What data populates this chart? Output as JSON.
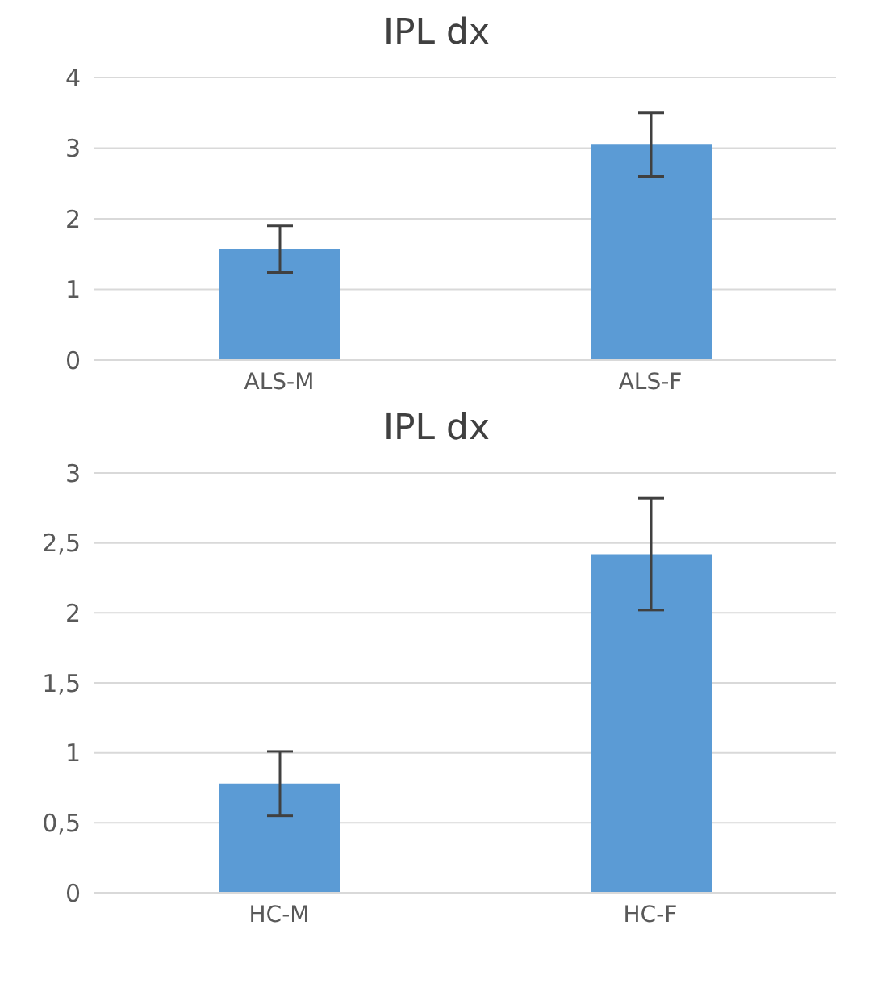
{
  "chart_data": [
    {
      "type": "bar",
      "title": "IPL dx",
      "categories": [
        "ALS-M",
        "ALS-F"
      ],
      "values": [
        1.57,
        3.05
      ],
      "errors": [
        0.33,
        0.45
      ],
      "color": "#5b9bd5",
      "ylim": [
        0,
        4
      ],
      "yticks": [
        0,
        1,
        2,
        3,
        4
      ],
      "grid": "y"
    },
    {
      "type": "bar",
      "title": "IPL dx",
      "categories": [
        "HC-M",
        "HC-F"
      ],
      "values": [
        0.78,
        2.42
      ],
      "errors": [
        0.23,
        0.4
      ],
      "color": "#5b9bd5",
      "ylim": [
        0,
        3
      ],
      "yticks": [
        0,
        {
          "value": 0.5,
          "label": "0,5"
        },
        1,
        {
          "value": 1.5,
          "label": "1,5"
        },
        2,
        {
          "value": 2.5,
          "label": "2,5"
        },
        3
      ],
      "grid": "y"
    }
  ]
}
